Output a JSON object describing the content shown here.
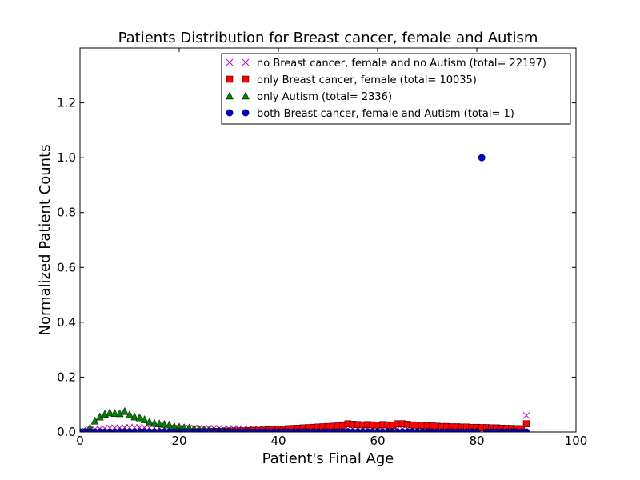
{
  "chart_data": {
    "type": "scatter",
    "title": "Patients Distribution for Breast cancer, female and Autism",
    "xlabel": "Patient's Final Age",
    "ylabel": "Normalized Patient Counts",
    "xlim": [
      0,
      100
    ],
    "ylim": [
      0,
      1.4
    ],
    "xticks": [
      0,
      20,
      40,
      60,
      80,
      100
    ],
    "xtick_labels": [
      "0",
      "20",
      "40",
      "60",
      "80",
      "100"
    ],
    "yticks": [
      0,
      0.2,
      0.4,
      0.6,
      0.8,
      1.0,
      1.2
    ],
    "ytick_labels": [
      "0.0",
      "0.2",
      "0.4",
      "0.6",
      "0.8",
      "1.0",
      "1.2"
    ],
    "grid": false,
    "legend_position": "top-right",
    "series": [
      {
        "name": "no Breast cancer, female and no Autism (total= 22197)",
        "marker": "x",
        "color": "#bf00bf",
        "x": [
          0,
          1,
          2,
          3,
          4,
          5,
          6,
          7,
          8,
          9,
          10,
          11,
          12,
          13,
          14,
          15,
          16,
          17,
          18,
          19,
          20,
          21,
          22,
          23,
          24,
          25,
          26,
          27,
          28,
          29,
          30,
          31,
          32,
          33,
          34,
          35,
          36,
          37,
          38,
          39,
          40,
          41,
          42,
          43,
          44,
          45,
          46,
          47,
          48,
          49,
          50,
          51,
          52,
          53,
          54,
          55,
          56,
          57,
          58,
          59,
          60,
          61,
          62,
          63,
          64,
          65,
          66,
          67,
          68,
          69,
          70,
          71,
          72,
          73,
          74,
          75,
          76,
          77,
          78,
          79,
          80,
          81,
          82,
          83,
          84,
          85,
          86,
          87,
          88,
          89,
          90
        ],
        "y": [
          0.002,
          0.004,
          0.007,
          0.01,
          0.012,
          0.013,
          0.014,
          0.015,
          0.015,
          0.016,
          0.016,
          0.016,
          0.016,
          0.016,
          0.015,
          0.015,
          0.015,
          0.015,
          0.014,
          0.014,
          0.014,
          0.014,
          0.014,
          0.014,
          0.013,
          0.013,
          0.013,
          0.013,
          0.013,
          0.012,
          0.012,
          0.012,
          0.012,
          0.012,
          0.011,
          0.011,
          0.011,
          0.011,
          0.011,
          0.011,
          0.011,
          0.011,
          0.011,
          0.011,
          0.011,
          0.011,
          0.011,
          0.011,
          0.011,
          0.011,
          0.011,
          0.011,
          0.011,
          0.011,
          0.011,
          0.011,
          0.011,
          0.011,
          0.011,
          0.011,
          0.011,
          0.011,
          0.011,
          0.011,
          0.011,
          0.011,
          0.011,
          0.011,
          0.011,
          0.011,
          0.01,
          0.01,
          0.01,
          0.01,
          0.01,
          0.01,
          0.01,
          0.009,
          0.009,
          0.009,
          0.009,
          0.008,
          0.008,
          0.008,
          0.007,
          0.007,
          0.006,
          0.006,
          0.005,
          0.005,
          0.06
        ]
      },
      {
        "name": "only Breast cancer, female (total= 10035)",
        "marker": "s",
        "color": "#ff0000",
        "x": [
          20,
          21,
          22,
          23,
          24,
          25,
          26,
          27,
          28,
          29,
          30,
          31,
          32,
          33,
          34,
          35,
          36,
          37,
          38,
          39,
          40,
          41,
          42,
          43,
          44,
          45,
          46,
          47,
          48,
          49,
          50,
          51,
          52,
          53,
          54,
          55,
          56,
          57,
          58,
          59,
          60,
          61,
          62,
          63,
          64,
          65,
          66,
          67,
          68,
          69,
          70,
          71,
          72,
          73,
          74,
          75,
          76,
          77,
          78,
          79,
          80,
          81,
          82,
          83,
          84,
          85,
          86,
          87,
          88,
          89,
          90
        ],
        "y": [
          0.0,
          0.0,
          0.0,
          0.0,
          0.001,
          0.001,
          0.001,
          0.002,
          0.002,
          0.002,
          0.003,
          0.003,
          0.004,
          0.004,
          0.005,
          0.006,
          0.006,
          0.007,
          0.008,
          0.009,
          0.01,
          0.011,
          0.012,
          0.013,
          0.014,
          0.015,
          0.016,
          0.017,
          0.018,
          0.019,
          0.02,
          0.021,
          0.022,
          0.023,
          0.03,
          0.028,
          0.027,
          0.026,
          0.027,
          0.026,
          0.025,
          0.027,
          0.026,
          0.024,
          0.03,
          0.03,
          0.028,
          0.026,
          0.025,
          0.024,
          0.023,
          0.022,
          0.021,
          0.02,
          0.02,
          0.019,
          0.019,
          0.018,
          0.018,
          0.017,
          0.017,
          0.016,
          0.016,
          0.015,
          0.015,
          0.014,
          0.013,
          0.013,
          0.012,
          0.012,
          0.03
        ]
      },
      {
        "name": "only Autism (total= 2336)",
        "marker": "^",
        "color": "#008000",
        "x": [
          0,
          1,
          2,
          3,
          4,
          5,
          6,
          7,
          8,
          9,
          10,
          11,
          12,
          13,
          14,
          15,
          16,
          17,
          18,
          19,
          20,
          21,
          22,
          23,
          24,
          25,
          26,
          27,
          28,
          29,
          30
        ],
        "y": [
          0.0,
          0.002,
          0.015,
          0.04,
          0.055,
          0.065,
          0.07,
          0.068,
          0.067,
          0.075,
          0.063,
          0.055,
          0.052,
          0.045,
          0.037,
          0.032,
          0.03,
          0.028,
          0.026,
          0.02,
          0.018,
          0.016,
          0.015,
          0.012,
          0.01,
          0.008,
          0.006,
          0.005,
          0.004,
          0.003,
          0.002
        ]
      },
      {
        "name": "both Breast cancer, female and Autism (total= 1)",
        "marker": "o",
        "color": "#0000cc",
        "x": [
          0,
          1,
          2,
          3,
          4,
          5,
          6,
          7,
          8,
          9,
          10,
          11,
          12,
          13,
          14,
          15,
          16,
          17,
          18,
          19,
          20,
          21,
          22,
          23,
          24,
          25,
          26,
          27,
          28,
          29,
          30,
          31,
          32,
          33,
          34,
          35,
          36,
          37,
          38,
          39,
          40,
          41,
          42,
          43,
          44,
          45,
          46,
          47,
          48,
          49,
          50,
          51,
          52,
          53,
          54,
          55,
          56,
          57,
          58,
          59,
          60,
          61,
          62,
          63,
          64,
          65,
          66,
          67,
          68,
          69,
          70,
          71,
          72,
          73,
          74,
          75,
          76,
          77,
          78,
          79,
          80,
          81,
          82,
          83,
          84,
          85,
          86,
          87,
          88,
          89,
          90
        ],
        "y": [
          0,
          0,
          0,
          0,
          0,
          0,
          0,
          0,
          0,
          0,
          0,
          0,
          0,
          0,
          0,
          0,
          0,
          0,
          0,
          0,
          0,
          0,
          0,
          0,
          0,
          0,
          0,
          0,
          0,
          0,
          0,
          0,
          0,
          0,
          0,
          0,
          0,
          0,
          0,
          0,
          0,
          0,
          0,
          0,
          0,
          0,
          0,
          0,
          0,
          0,
          0,
          0,
          0,
          0,
          0,
          0,
          0,
          0,
          0,
          0,
          0,
          0,
          0,
          0,
          0,
          0,
          0,
          0,
          0,
          0,
          0,
          0,
          0,
          0,
          0,
          0,
          0,
          0,
          0,
          0,
          0,
          1.0,
          0,
          0,
          0,
          0,
          0,
          0,
          0,
          0,
          0
        ]
      }
    ]
  }
}
